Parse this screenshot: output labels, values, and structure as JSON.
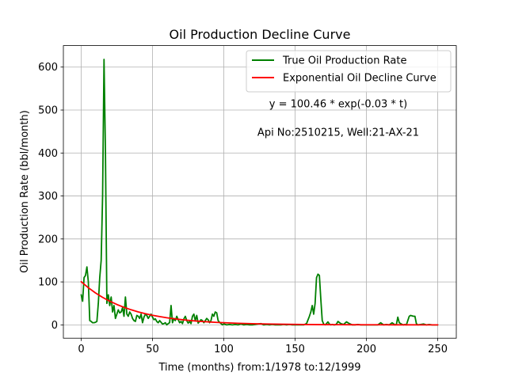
{
  "chart_data": {
    "type": "line",
    "title": "Oil Production Decline Curve",
    "xlabel": "Time (months) from:1/1978 to:12/1999",
    "ylabel": "Oil Production Rate (bbl/month)",
    "xlim": [
      -12.5,
      263
    ],
    "ylim": [
      -31,
      650
    ],
    "xticks": [
      0,
      50,
      100,
      150,
      200,
      250
    ],
    "yticks": [
      0,
      100,
      200,
      300,
      400,
      500,
      600
    ],
    "grid": true,
    "legend_position": "top-right",
    "annotations": [
      "y = 100.46 * exp(-0.03 * t)",
      "Api No:2510215, Well:21-AX-21"
    ],
    "series": [
      {
        "name": "True Oil Production Rate",
        "color": "#008000",
        "x": [
          0,
          1,
          2,
          3,
          4,
          5,
          6,
          7,
          8,
          9,
          10,
          11,
          12,
          13,
          14,
          15,
          16,
          17,
          18,
          19,
          20,
          21,
          22,
          23,
          24,
          25,
          26,
          27,
          28,
          29,
          30,
          31,
          32,
          33,
          34,
          35,
          36,
          37,
          38,
          39,
          40,
          41,
          42,
          43,
          44,
          45,
          46,
          47,
          48,
          49,
          50,
          51,
          52,
          53,
          54,
          55,
          56,
          57,
          58,
          59,
          60,
          61,
          62,
          63,
          64,
          65,
          66,
          67,
          68,
          69,
          70,
          71,
          72,
          73,
          74,
          75,
          76,
          77,
          78,
          79,
          80,
          81,
          82,
          83,
          84,
          85,
          86,
          87,
          88,
          89,
          90,
          91,
          92,
          93,
          94,
          95,
          96,
          97,
          98,
          99,
          100,
          102,
          104,
          106,
          108,
          110,
          112,
          114,
          116,
          118,
          120,
          122,
          124,
          126,
          128,
          130,
          132,
          134,
          136,
          138,
          140,
          142,
          144,
          146,
          148,
          150,
          152,
          154,
          156,
          158,
          160,
          161,
          162,
          163,
          164,
          165,
          166,
          167,
          168,
          169,
          170,
          171,
          172,
          173,
          174,
          175,
          176,
          177,
          178,
          179,
          180,
          182,
          184,
          186,
          188,
          190,
          192,
          194,
          196,
          198,
          200,
          202,
          204,
          206,
          208,
          210,
          212,
          214,
          216,
          218,
          220,
          221,
          222,
          223,
          224,
          225,
          226,
          227,
          228,
          229,
          230,
          231,
          232,
          233,
          234,
          235,
          236,
          238,
          240,
          242,
          244,
          246,
          248,
          250
        ],
        "values": [
          70,
          55,
          110,
          115,
          135,
          100,
          10,
          8,
          5,
          5,
          6,
          8,
          50,
          110,
          150,
          300,
          618,
          400,
          50,
          70,
          45,
          65,
          30,
          45,
          15,
          25,
          35,
          28,
          30,
          40,
          20,
          65,
          25,
          20,
          30,
          25,
          15,
          10,
          8,
          22,
          20,
          15,
          25,
          5,
          18,
          25,
          22,
          15,
          20,
          25,
          18,
          12,
          14,
          8,
          5,
          10,
          6,
          2,
          3,
          5,
          0,
          3,
          5,
          45,
          5,
          15,
          10,
          20,
          12,
          5,
          8,
          3,
          14,
          20,
          10,
          4,
          8,
          3,
          20,
          25,
          10,
          22,
          4,
          8,
          12,
          10,
          5,
          10,
          15,
          12,
          5,
          10,
          25,
          20,
          30,
          28,
          10,
          6,
          3,
          0,
          2,
          0,
          1,
          0,
          1,
          0,
          2,
          0,
          1,
          0,
          0,
          1,
          2,
          3,
          0,
          1,
          0,
          1,
          0,
          0,
          0,
          1,
          0,
          1,
          0,
          0,
          0,
          0,
          0,
          3,
          20,
          30,
          45,
          25,
          50,
          110,
          118,
          115,
          60,
          10,
          2,
          0,
          3,
          7,
          2,
          0,
          1,
          0,
          0,
          2,
          8,
          3,
          1,
          7,
          3,
          0,
          0,
          1,
          0,
          0,
          0,
          0,
          0,
          0,
          0,
          5,
          0,
          1,
          0,
          5,
          0,
          1,
          18,
          5,
          3,
          1,
          0,
          1,
          0,
          10,
          20,
          22,
          21,
          20,
          20,
          3,
          0,
          1,
          2,
          0,
          1,
          0,
          0,
          0
        ]
      },
      {
        "name": "Exponential Oil Decline Curve",
        "color": "#ff0000",
        "model": {
          "a": 100.46,
          "b": 0.03
        },
        "x": [
          0,
          5,
          10,
          15,
          20,
          25,
          30,
          35,
          40,
          45,
          50,
          55,
          60,
          65,
          70,
          75,
          80,
          85,
          90,
          95,
          100,
          110,
          120,
          130,
          140,
          150,
          160,
          170,
          180,
          190,
          200,
          210,
          220,
          230,
          240,
          250
        ],
        "values": [
          100.46,
          86.47,
          74.42,
          64.06,
          55.13,
          47.46,
          40.85,
          35.16,
          30.26,
          26.05,
          22.42,
          19.3,
          16.61,
          14.3,
          12.31,
          10.59,
          9.12,
          7.85,
          6.75,
          5.81,
          5.0,
          3.71,
          2.74,
          2.03,
          1.51,
          1.12,
          0.83,
          0.61,
          0.45,
          0.34,
          0.25,
          0.18,
          0.14,
          0.1,
          0.07,
          0.06
        ]
      }
    ]
  }
}
